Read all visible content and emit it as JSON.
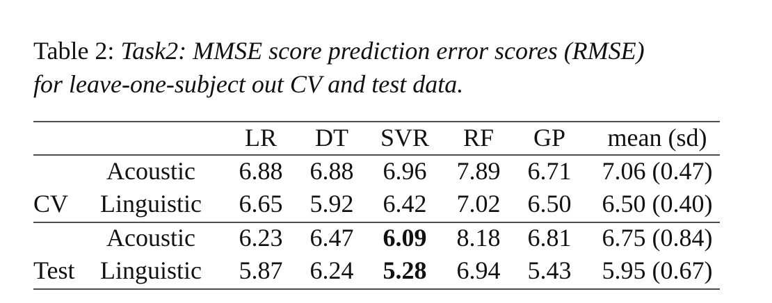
{
  "caption": {
    "label": "Table 2:",
    "lines": [
      "Task2: MMSE score prediction error scores (RMSE)",
      "for leave-one-subject out CV and test data."
    ]
  },
  "table": {
    "header": [
      "LR",
      "DT",
      "SVR",
      "RF",
      "GP",
      "mean (sd)"
    ],
    "groups": [
      {
        "label": "CV",
        "rows": [
          {
            "name": "Acoustic",
            "cells": [
              "6.88",
              "6.88",
              "6.96",
              "7.89",
              "6.71",
              "7.06 (0.47)"
            ]
          },
          {
            "name": "Linguistic",
            "cells": [
              "6.65",
              "5.92",
              "6.42",
              "7.02",
              "6.50",
              "6.50 (0.40)"
            ]
          }
        ]
      },
      {
        "label": "Test",
        "rows": [
          {
            "name": "Acoustic",
            "cells": [
              "6.23",
              "6.47",
              "6.09",
              "8.18",
              "6.81",
              "6.75 (0.84)"
            ]
          },
          {
            "name": "Linguistic",
            "cells": [
              "5.87",
              "6.24",
              "5.28",
              "6.94",
              "5.43",
              "5.95 (0.67)"
            ]
          }
        ]
      }
    ]
  }
}
